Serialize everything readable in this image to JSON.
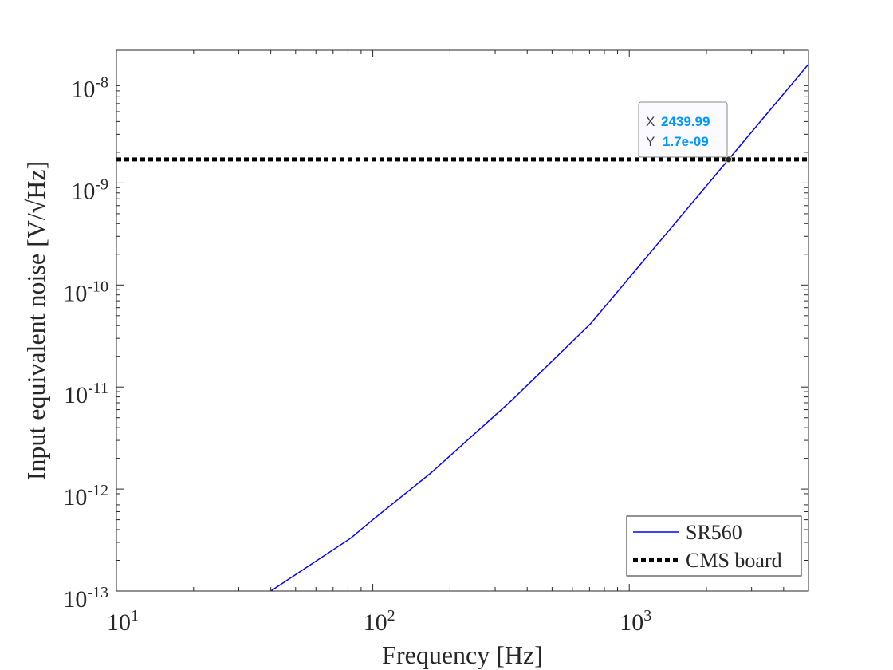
{
  "chart_data": {
    "type": "line",
    "title": "",
    "xlabel": "Frequency [Hz]",
    "ylabel": "Input equivalent noise [V/√Hz]",
    "xscale": "log",
    "yscale": "log",
    "xlim": [
      10,
      5000
    ],
    "ylim": [
      1e-13,
      2e-08
    ],
    "x_ticks": [
      10,
      100,
      1000
    ],
    "x_tick_labels": [
      {
        "base": "10",
        "exp": "1"
      },
      {
        "base": "10",
        "exp": "2"
      },
      {
        "base": "10",
        "exp": "3"
      }
    ],
    "y_ticks": [
      1e-13,
      1e-12,
      1e-11,
      1e-10,
      1e-09,
      1e-08
    ],
    "y_tick_labels": [
      {
        "base": "10",
        "exp": "-13"
      },
      {
        "base": "10",
        "exp": "-12"
      },
      {
        "base": "10",
        "exp": "-11"
      },
      {
        "base": "10",
        "exp": "-10"
      },
      {
        "base": "10",
        "exp": "-9"
      },
      {
        "base": "10",
        "exp": "-8"
      }
    ],
    "grid": false,
    "legend_position": "bottom-right",
    "series": [
      {
        "name": "SR560",
        "color": "#0000ff",
        "style": "solid",
        "x": [
          40,
          82,
          100,
          169,
          346,
          708,
          1000,
          1452,
          2440,
          5000
        ],
        "y": [
          1e-13,
          3.3e-13,
          5e-13,
          1.45e-12,
          7.3e-12,
          4.2e-11,
          1.18e-10,
          3.6e-10,
          1.7e-09,
          1.46e-08
        ]
      },
      {
        "name": "CMS board",
        "color": "#000000",
        "style": "dotted",
        "x": [
          10,
          5000
        ],
        "y": [
          1.7e-09,
          1.7e-09
        ]
      }
    ],
    "datatip": {
      "x_label": "X",
      "x_value": "2439.99",
      "y_label": "Y",
      "y_value": "1.7e-09",
      "x": 2439.99,
      "y": 1.7e-09,
      "value_color": "#0096ff"
    }
  }
}
